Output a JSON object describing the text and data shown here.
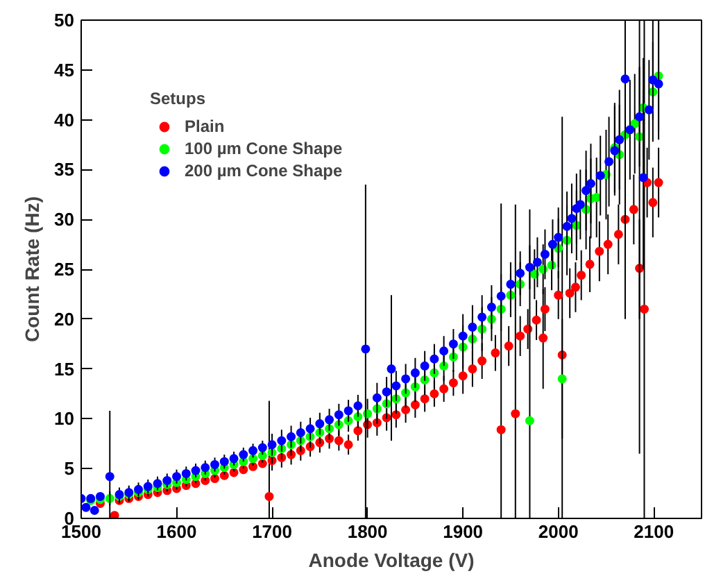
{
  "chart_data": {
    "type": "scatter",
    "xlabel": "Anode Voltage (V)",
    "ylabel": "Count Rate (Hz)",
    "legend_title": "Setups",
    "legend": "top left",
    "grid": false,
    "marker": "circle",
    "xlim": [
      1500,
      2150
    ],
    "xticks": [
      1500,
      1600,
      1700,
      1800,
      1900,
      2000,
      2100
    ],
    "ylim": [
      0,
      50
    ],
    "yticks": [
      0,
      5,
      10,
      15,
      20,
      25,
      30,
      35,
      40,
      45,
      50
    ],
    "series": [
      {
        "name": "Plain",
        "color": "#ff0000",
        "x": [
          1520,
          1535,
          1540,
          1550,
          1560,
          1570,
          1580,
          1590,
          1600,
          1610,
          1620,
          1630,
          1640,
          1650,
          1660,
          1670,
          1680,
          1690,
          1697,
          1700,
          1710,
          1720,
          1730,
          1740,
          1750,
          1760,
          1770,
          1780,
          1790,
          1800,
          1810,
          1820,
          1830,
          1840,
          1850,
          1860,
          1870,
          1880,
          1890,
          1900,
          1910,
          1920,
          1934,
          1940,
          1948,
          1955,
          1960,
          1968,
          1977,
          1984,
          1986,
          2000,
          2004,
          2012,
          2018,
          2024,
          2033,
          2043,
          2052,
          2063,
          2070,
          2079,
          2085,
          2090,
          2093,
          2099,
          2105
        ],
        "values": [
          1.5,
          0.3,
          1.8,
          2.0,
          2.2,
          2.4,
          2.6,
          2.8,
          3.0,
          3.3,
          3.5,
          3.8,
          4.0,
          4.3,
          4.6,
          4.9,
          5.2,
          5.5,
          2.2,
          5.8,
          6.1,
          6.4,
          6.8,
          7.2,
          7.6,
          8.0,
          7.8,
          7.4,
          8.8,
          9.4,
          9.6,
          10.1,
          10.4,
          10.9,
          11.4,
          12.0,
          12.5,
          13.0,
          13.6,
          14.3,
          15.0,
          15.8,
          16.6,
          8.9,
          17.3,
          10.5,
          18.3,
          19.0,
          19.9,
          18.1,
          21.0,
          22.4,
          16.4,
          22.6,
          23.2,
          24.4,
          25.5,
          26.8,
          27.5,
          28.5,
          30.0,
          31.0,
          25.1,
          21.0,
          33.7,
          31.7,
          33.7
        ],
        "errors": [
          null,
          0.3,
          null,
          null,
          null,
          null,
          null,
          null,
          null,
          null,
          null,
          null,
          null,
          null,
          null,
          null,
          null,
          null,
          [
            0,
            11.8
          ],
          1.0,
          1.0,
          1.0,
          1.0,
          1.0,
          1.0,
          1.0,
          1.0,
          1.0,
          1.0,
          1.3,
          1.3,
          1.3,
          1.3,
          1.3,
          1.3,
          1.3,
          1.3,
          1.3,
          1.3,
          1.8,
          1.8,
          1.8,
          1.8,
          [
            0,
            31.6
          ],
          2.0,
          [
            0,
            31.5
          ],
          2.0,
          2.0,
          2.0,
          [
            13,
            23
          ],
          2.2,
          2.4,
          [
            0,
            40.3
          ],
          2.5,
          2.5,
          2.5,
          2.8,
          3.0,
          3.0,
          3.0,
          3.0,
          3.5,
          [
            20,
            30
          ],
          [
            0,
            50
          ],
          3.5,
          3.5,
          3.5
        ]
      },
      {
        "name": "100 µm Cone Shape",
        "color": "#00ff00",
        "x": [
          1510,
          1520,
          1530,
          1540,
          1550,
          1560,
          1570,
          1580,
          1590,
          1600,
          1610,
          1620,
          1630,
          1640,
          1650,
          1660,
          1670,
          1680,
          1690,
          1700,
          1710,
          1720,
          1730,
          1740,
          1750,
          1760,
          1770,
          1780,
          1790,
          1800,
          1810,
          1820,
          1830,
          1840,
          1850,
          1860,
          1870,
          1880,
          1890,
          1900,
          1910,
          1920,
          1930,
          1940,
          1950,
          1960,
          1970,
          1975,
          1984,
          1993,
          2000,
          2004,
          2009,
          2019,
          2029,
          2034,
          2040,
          2050,
          2059,
          2064,
          2070,
          2080,
          2085,
          2089,
          2099,
          2105
        ],
        "values": [
          1.8,
          1.9,
          2.0,
          2.2,
          2.4,
          2.6,
          2.9,
          3.1,
          3.4,
          3.6,
          3.9,
          4.2,
          4.5,
          4.8,
          5.1,
          5.4,
          5.7,
          6.0,
          6.3,
          6.6,
          7.0,
          7.4,
          7.8,
          8.2,
          8.6,
          9.0,
          9.4,
          9.8,
          10.2,
          10.5,
          11.0,
          11.5,
          12.0,
          12.6,
          13.2,
          13.9,
          14.6,
          15.3,
          16.2,
          17.2,
          18.0,
          19.0,
          20.0,
          21.0,
          22.4,
          23.5,
          9.8,
          24.5,
          25.0,
          25.4,
          27.1,
          14.0,
          27.9,
          29.4,
          31.0,
          32.1,
          32.2,
          34.5,
          37.2,
          36.5,
          38.5,
          39.6,
          38.3,
          41.2,
          42.8,
          44.4
        ],
        "errors": [
          null,
          null,
          0.7,
          0.7,
          0.7,
          0.7,
          0.7,
          0.7,
          0.7,
          0.7,
          0.7,
          0.7,
          0.7,
          0.7,
          0.7,
          0.7,
          0.7,
          0.7,
          0.7,
          1.1,
          1.1,
          1.1,
          1.1,
          1.1,
          1.1,
          1.1,
          1.1,
          1.1,
          1.1,
          1.5,
          1.5,
          1.5,
          1.5,
          1.5,
          1.5,
          1.5,
          1.5,
          1.5,
          1.5,
          2.2,
          2.2,
          2.2,
          2.2,
          2.2,
          2.2,
          2.2,
          [
            0,
            31
          ],
          2.5,
          2.5,
          2.5,
          3.0,
          [
            8,
            20
          ],
          3.5,
          3.5,
          4.0,
          4.0,
          4.0,
          4.5,
          4.5,
          5.0,
          5.0,
          5.0,
          [
            6.5,
            50
          ],
          5.0,
          5.0,
          5.5
        ]
      },
      {
        "name": "200 µm Cone Shape",
        "color": "#0000ff",
        "x": [
          1500,
          1505,
          1510,
          1514,
          1520,
          1530,
          1540,
          1550,
          1560,
          1570,
          1580,
          1590,
          1600,
          1610,
          1620,
          1630,
          1640,
          1650,
          1660,
          1670,
          1680,
          1690,
          1700,
          1710,
          1720,
          1730,
          1740,
          1750,
          1760,
          1770,
          1780,
          1790,
          1798,
          1810,
          1820,
          1825,
          1830,
          1840,
          1850,
          1860,
          1870,
          1880,
          1890,
          1900,
          1910,
          1920,
          1930,
          1940,
          1950,
          1960,
          1970,
          1978,
          1986,
          1994,
          2000,
          2009,
          2014,
          2019,
          2023,
          2029,
          2034,
          2044,
          2053,
          2059,
          2064,
          2070,
          2075,
          2085,
          2089,
          2095,
          2099,
          2105
        ],
        "values": [
          2.0,
          1.1,
          2.0,
          0.8,
          2.2,
          4.2,
          2.4,
          2.6,
          2.9,
          3.2,
          3.5,
          3.8,
          4.2,
          4.5,
          4.8,
          5.1,
          5.4,
          5.7,
          6.0,
          6.4,
          6.8,
          7.1,
          7.4,
          7.8,
          8.2,
          8.6,
          9.0,
          9.5,
          9.9,
          10.4,
          10.8,
          11.3,
          17.0,
          12.1,
          12.7,
          15.0,
          13.3,
          14.0,
          14.6,
          15.3,
          16.0,
          16.8,
          17.5,
          18.3,
          19.2,
          20.2,
          21.2,
          22.3,
          23.5,
          24.6,
          25.2,
          25.7,
          26.5,
          27.5,
          28.2,
          29.3,
          30.1,
          31.1,
          31.5,
          32.9,
          33.6,
          34.4,
          35.8,
          36.9,
          38.0,
          44.1,
          39.0,
          40.3,
          34.2,
          41.0,
          44.0,
          43.6
        ],
        "errors": [
          0.7,
          null,
          null,
          null,
          null,
          [
            0,
            10.8
          ],
          0.7,
          0.7,
          0.7,
          0.7,
          0.7,
          0.7,
          0.7,
          0.7,
          0.7,
          0.7,
          0.7,
          0.7,
          0.7,
          0.7,
          0.7,
          0.7,
          1.1,
          1.1,
          1.1,
          1.1,
          1.1,
          1.1,
          1.1,
          1.1,
          1.1,
          1.1,
          [
            0,
            33.5
          ],
          1.5,
          1.5,
          [
            7.8,
            22.4
          ],
          1.5,
          1.5,
          1.5,
          1.5,
          1.5,
          1.5,
          1.5,
          2.2,
          2.2,
          2.2,
          2.2,
          2.2,
          2.2,
          2.2,
          2.2,
          2.5,
          2.5,
          2.5,
          3.0,
          3.5,
          3.5,
          3.5,
          3.5,
          4.0,
          4.0,
          4.0,
          4.5,
          4.5,
          5.0,
          [
            20,
            50
          ],
          5.0,
          5.0,
          [
            25,
            43
          ],
          5.0,
          [
            40,
            50
          ],
          [
            38,
            50
          ]
        ]
      }
    ]
  }
}
